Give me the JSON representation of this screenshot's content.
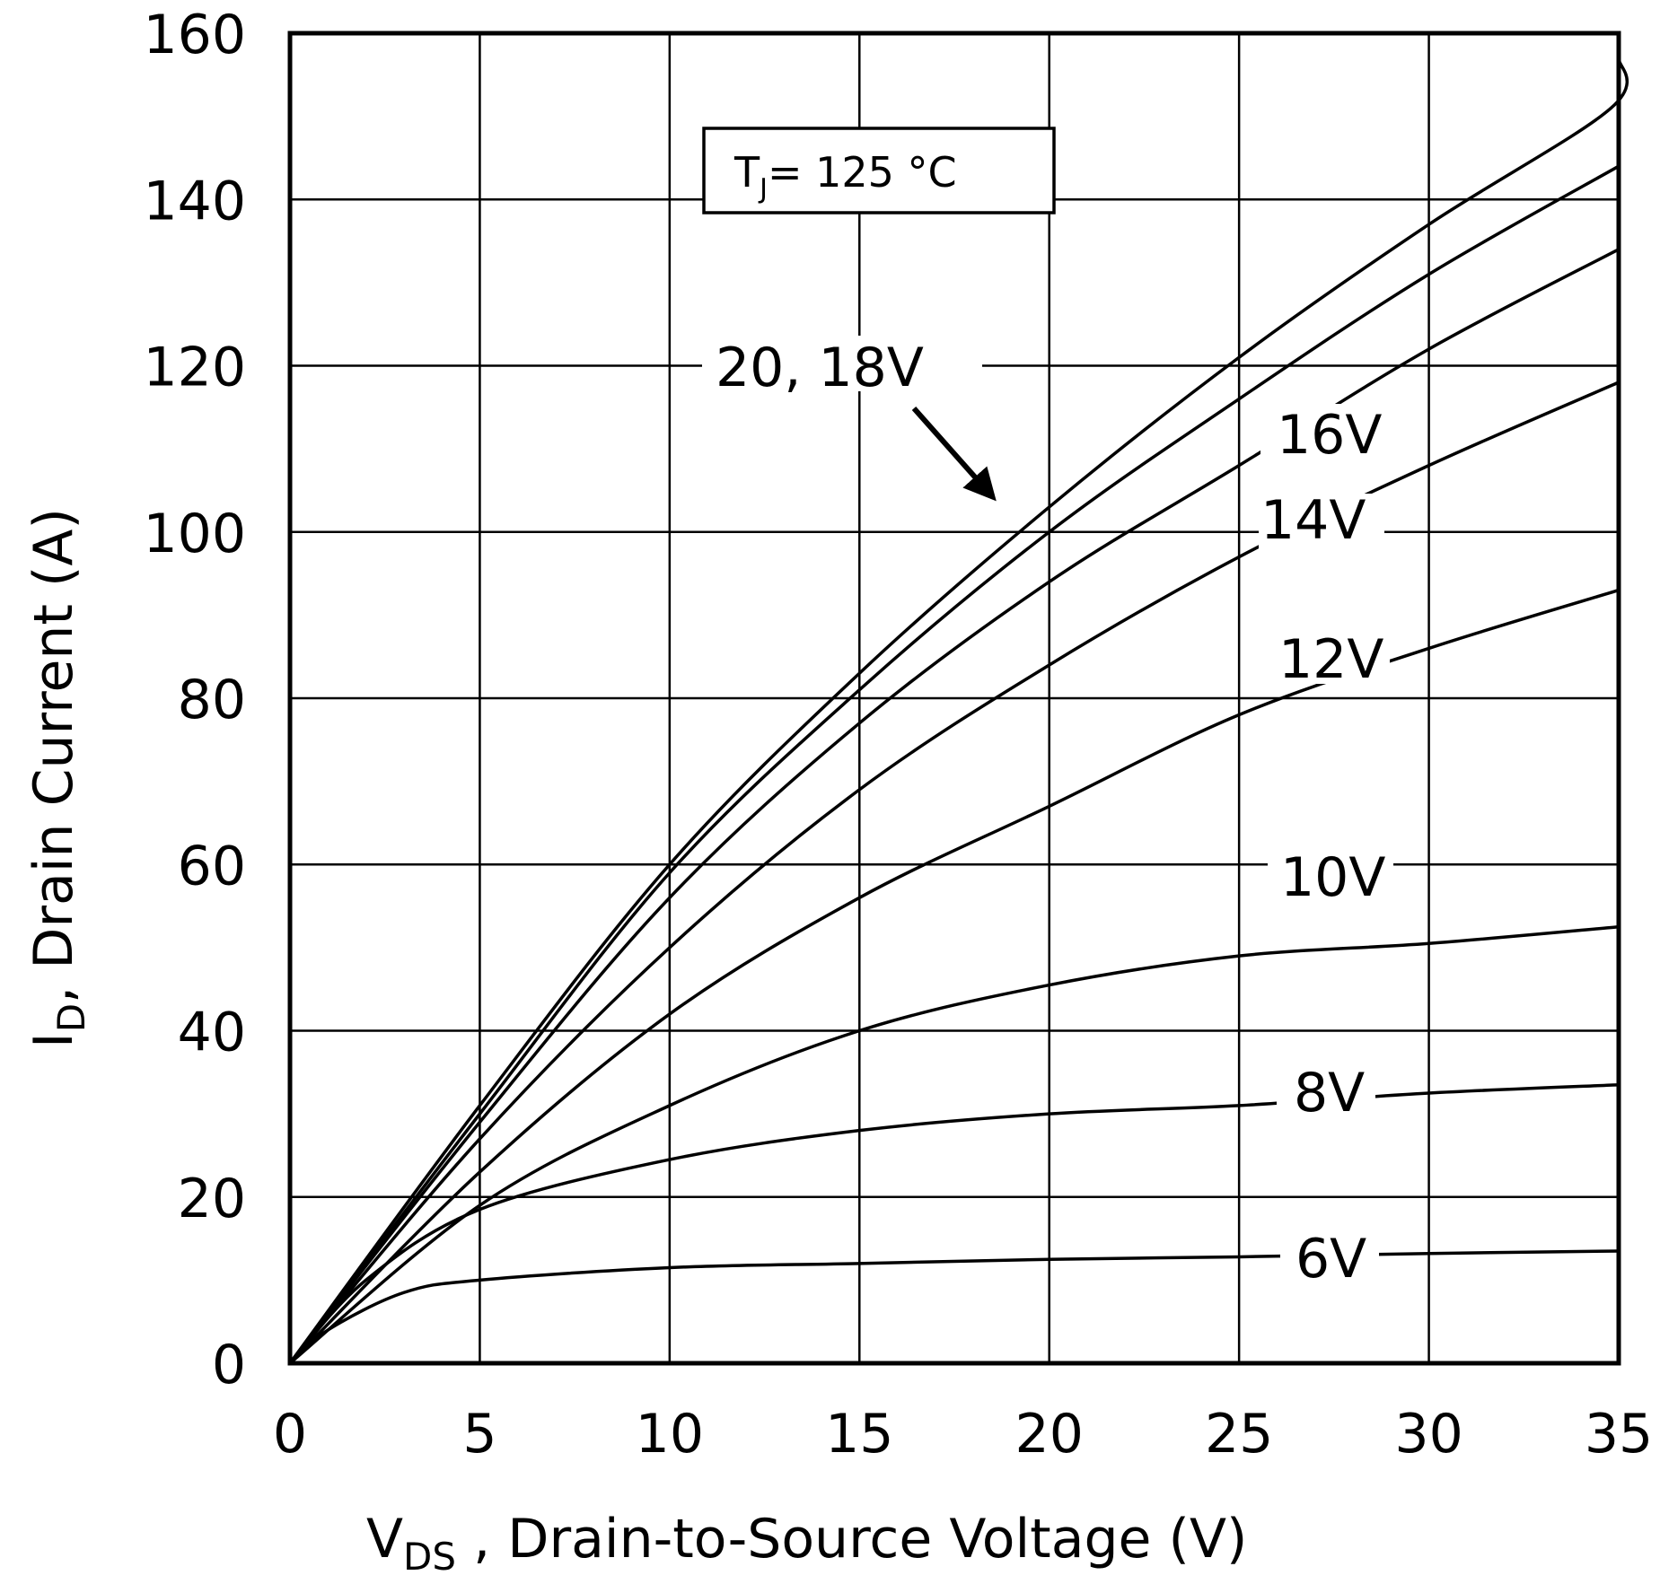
{
  "chart_data": {
    "type": "line",
    "title": "",
    "xlabel": {
      "main": "V",
      "sub": "DS",
      "rest": " , Drain-to-Source Voltage (V)"
    },
    "ylabel": {
      "main": "I",
      "sub": "D",
      "rest": ", Drain Current (A)"
    },
    "xlim": [
      0,
      35
    ],
    "ylim": [
      0,
      160
    ],
    "xticks": [
      0,
      5,
      10,
      15,
      20,
      25,
      30,
      35
    ],
    "yticks": [
      0,
      20,
      40,
      60,
      80,
      100,
      120,
      140,
      160
    ],
    "grid": true,
    "annotation": {
      "t": "T",
      "sub": "J",
      "rest": "= 125 °C"
    },
    "series": [
      {
        "name": "20V",
        "label": "20, 18V",
        "x": [
          0,
          5,
          10,
          15,
          20,
          25,
          30,
          34.8,
          35
        ],
        "y": [
          0,
          31,
          60,
          83,
          103,
          121,
          137,
          151,
          157
        ]
      },
      {
        "name": "18V",
        "label": "",
        "x": [
          0,
          5,
          10,
          15,
          20,
          25,
          30,
          35
        ],
        "y": [
          0,
          30,
          59,
          81,
          100,
          116,
          131,
          144
        ]
      },
      {
        "name": "16V",
        "label": "16V",
        "x": [
          0,
          5,
          10,
          15,
          20,
          25,
          30,
          35
        ],
        "y": [
          0,
          29,
          56,
          77,
          94,
          108,
          122,
          134
        ]
      },
      {
        "name": "14V",
        "label": "14V",
        "x": [
          0,
          5,
          10,
          15,
          20,
          25,
          30,
          35
        ],
        "y": [
          0,
          27,
          50,
          69,
          84,
          97,
          108,
          118
        ]
      },
      {
        "name": "12V",
        "label": "12V",
        "x": [
          0,
          5,
          10,
          15,
          20,
          25,
          30,
          35
        ],
        "y": [
          0,
          23,
          42,
          56,
          67,
          78,
          86,
          93
        ]
      },
      {
        "name": "10V",
        "label": "10V",
        "x": [
          0,
          5,
          10,
          15,
          20,
          25,
          30,
          35
        ],
        "y": [
          0,
          19,
          31,
          40,
          45.5,
          49,
          50.5,
          52.5
        ]
      },
      {
        "name": "8V",
        "label": "8V",
        "x": [
          0,
          2,
          5,
          10,
          15,
          20,
          25,
          30,
          35
        ],
        "y": [
          0,
          10,
          18.5,
          24.5,
          28,
          30,
          31,
          32.5,
          33.5
        ]
      },
      {
        "name": "6V",
        "label": "6V",
        "x": [
          0,
          1,
          3,
          5,
          10,
          15,
          20,
          25,
          30,
          35
        ],
        "y": [
          0,
          4,
          8.5,
          10,
          11.5,
          12,
          12.5,
          12.8,
          13.2,
          13.5
        ]
      }
    ],
    "callouts": {
      "v20_18": "20, 18V",
      "v16": "16V",
      "v14": "14V",
      "v12": "12V",
      "v10": "10V",
      "v8": "8V",
      "v6": "6V"
    }
  }
}
